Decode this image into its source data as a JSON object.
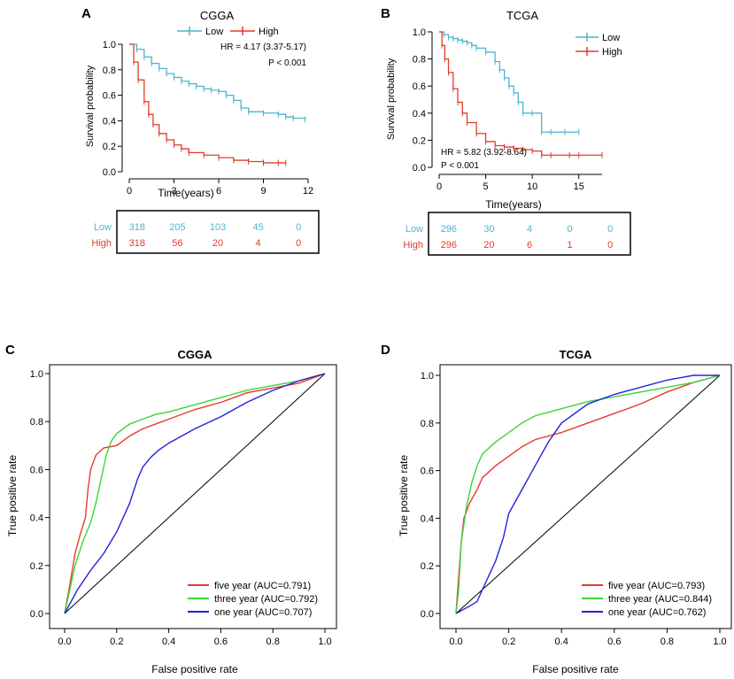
{
  "chart_data": [
    {
      "panel": "A",
      "type": "line",
      "subtype": "kaplan-meier",
      "title": "CGGA",
      "xlabel": "Time(years)",
      "ylabel": "Survival probability",
      "xlim": [
        0,
        12
      ],
      "ylim": [
        0,
        1
      ],
      "xticks": [
        "0",
        "3",
        "6",
        "9",
        "12"
      ],
      "yticks": [
        "0.0",
        "0.2",
        "0.4",
        "0.6",
        "0.8",
        "1.0"
      ],
      "legend": [
        "Low",
        "High"
      ],
      "legend_position": "top",
      "annotation": [
        "HR = 4.17 (3.37-5.17)",
        "P < 0.001"
      ],
      "colors": {
        "Low": "#4fb3cf",
        "High": "#e03c2c"
      },
      "series": [
        {
          "name": "Low",
          "x": [
            0,
            0.5,
            1,
            1.5,
            2,
            2.5,
            3,
            3.5,
            4,
            4.5,
            5,
            5.5,
            6,
            6.5,
            7,
            7.5,
            8,
            9,
            10,
            10.5,
            11,
            11.8
          ],
          "y": [
            1.0,
            0.96,
            0.9,
            0.85,
            0.81,
            0.77,
            0.74,
            0.71,
            0.69,
            0.67,
            0.65,
            0.64,
            0.63,
            0.6,
            0.56,
            0.5,
            0.47,
            0.46,
            0.45,
            0.43,
            0.42,
            0.41
          ]
        },
        {
          "name": "High",
          "x": [
            0,
            0.3,
            0.6,
            1,
            1.3,
            1.6,
            2,
            2.5,
            3,
            3.5,
            4,
            5,
            6,
            7,
            8,
            9,
            10,
            10.5
          ],
          "y": [
            1.0,
            0.86,
            0.72,
            0.55,
            0.45,
            0.37,
            0.3,
            0.25,
            0.21,
            0.18,
            0.15,
            0.13,
            0.11,
            0.09,
            0.08,
            0.07,
            0.07,
            0.07
          ]
        }
      ],
      "risk_table": {
        "times": [
          "0",
          "3",
          "6",
          "9",
          "12"
        ],
        "rows": [
          {
            "name": "Low",
            "values": [
              "318",
              "205",
              "103",
              "45",
              "0"
            ]
          },
          {
            "name": "High",
            "values": [
              "318",
              "56",
              "20",
              "4",
              "0"
            ]
          }
        ]
      }
    },
    {
      "panel": "B",
      "type": "line",
      "subtype": "kaplan-meier",
      "title": "TCGA",
      "xlabel": "Time(years)",
      "ylabel": "Survival probability",
      "xlim": [
        0,
        17.5
      ],
      "ylim": [
        0,
        1
      ],
      "xticks": [
        "0",
        "5",
        "10",
        "15"
      ],
      "yticks": [
        "0.0",
        "0.2",
        "0.4",
        "0.6",
        "0.8",
        "1.0"
      ],
      "legend": [
        "Low",
        "High"
      ],
      "legend_position": "top-right",
      "annotation": [
        "HR = 5.82 (3.92-8.64)",
        "P < 0.001"
      ],
      "colors": {
        "Low": "#4fb3cf",
        "High": "#e03c2c"
      },
      "series": [
        {
          "name": "Low",
          "x": [
            0,
            0.5,
            1,
            1.5,
            2,
            2.5,
            3,
            3.5,
            4,
            5,
            6,
            6.5,
            7,
            7.5,
            8,
            8.5,
            9,
            10,
            11,
            12,
            13.5,
            15
          ],
          "y": [
            1.0,
            0.98,
            0.96,
            0.95,
            0.94,
            0.93,
            0.92,
            0.9,
            0.88,
            0.85,
            0.78,
            0.72,
            0.66,
            0.6,
            0.55,
            0.48,
            0.4,
            0.4,
            0.26,
            0.26,
            0.26,
            0.26
          ]
        },
        {
          "name": "High",
          "x": [
            0,
            0.3,
            0.6,
            1,
            1.5,
            2,
            2.5,
            3,
            4,
            5,
            6,
            7,
            8,
            9,
            10,
            11,
            12,
            14,
            15,
            17.5
          ],
          "y": [
            1.0,
            0.9,
            0.8,
            0.7,
            0.58,
            0.48,
            0.4,
            0.33,
            0.25,
            0.19,
            0.16,
            0.15,
            0.14,
            0.13,
            0.12,
            0.09,
            0.09,
            0.09,
            0.09,
            0.09
          ]
        }
      ],
      "risk_table": {
        "times": [
          "0",
          "5",
          "10",
          "15",
          "17.5"
        ],
        "rows": [
          {
            "name": "Low",
            "values": [
              "296",
              "30",
              "4",
              "0",
              "0"
            ]
          },
          {
            "name": "High",
            "values": [
              "296",
              "20",
              "6",
              "1",
              "0"
            ]
          }
        ]
      }
    },
    {
      "panel": "C",
      "type": "line",
      "subtype": "roc",
      "title": "CGGA",
      "xlabel": "False positive rate",
      "ylabel": "True positive rate",
      "xlim": [
        0,
        1
      ],
      "ylim": [
        0,
        1
      ],
      "xticks": [
        "0.0",
        "0.2",
        "0.4",
        "0.6",
        "0.8",
        "1.0"
      ],
      "yticks": [
        "0.0",
        "0.2",
        "0.4",
        "0.6",
        "0.8",
        "1.0"
      ],
      "legend_position": "bottom-right",
      "series": [
        {
          "name": "five year (AUC=0.791)",
          "color": "#e53b2c",
          "x": [
            0,
            0.02,
            0.04,
            0.06,
            0.08,
            0.09,
            0.1,
            0.12,
            0.15,
            0.2,
            0.25,
            0.3,
            0.35,
            0.4,
            0.5,
            0.6,
            0.7,
            0.8,
            0.9,
            0.95,
            1.0
          ],
          "y": [
            0,
            0.12,
            0.25,
            0.33,
            0.4,
            0.52,
            0.6,
            0.66,
            0.69,
            0.7,
            0.74,
            0.77,
            0.79,
            0.81,
            0.85,
            0.88,
            0.92,
            0.94,
            0.96,
            0.98,
            1.0
          ]
        },
        {
          "name": "three year (AUC=0.792)",
          "color": "#3ad43a",
          "x": [
            0,
            0.02,
            0.04,
            0.07,
            0.1,
            0.12,
            0.14,
            0.16,
            0.18,
            0.2,
            0.25,
            0.3,
            0.35,
            0.4,
            0.5,
            0.6,
            0.7,
            0.8,
            0.9,
            1.0
          ],
          "y": [
            0,
            0.1,
            0.2,
            0.3,
            0.38,
            0.46,
            0.56,
            0.66,
            0.72,
            0.75,
            0.79,
            0.81,
            0.83,
            0.84,
            0.87,
            0.9,
            0.93,
            0.95,
            0.97,
            1.0
          ]
        },
        {
          "name": "one year (AUC=0.707)",
          "color": "#2323d8",
          "x": [
            0,
            0.05,
            0.1,
            0.15,
            0.2,
            0.25,
            0.28,
            0.3,
            0.33,
            0.36,
            0.4,
            0.45,
            0.5,
            0.6,
            0.7,
            0.8,
            0.9,
            1.0
          ],
          "y": [
            0,
            0.1,
            0.18,
            0.25,
            0.34,
            0.46,
            0.56,
            0.61,
            0.65,
            0.68,
            0.71,
            0.74,
            0.77,
            0.82,
            0.88,
            0.93,
            0.97,
            1.0
          ]
        }
      ]
    },
    {
      "panel": "D",
      "type": "line",
      "subtype": "roc",
      "title": "TCGA",
      "xlabel": "False positive rate",
      "ylabel": "True positive rate",
      "xlim": [
        0,
        1
      ],
      "ylim": [
        0,
        1
      ],
      "xticks": [
        "0.0",
        "0.2",
        "0.4",
        "0.6",
        "0.8",
        "1.0"
      ],
      "yticks": [
        "0.0",
        "0.2",
        "0.4",
        "0.6",
        "0.8",
        "1.0"
      ],
      "legend_position": "bottom-right",
      "series": [
        {
          "name": "five year (AUC=0.793)",
          "color": "#e53b2c",
          "x": [
            0,
            0.01,
            0.02,
            0.03,
            0.05,
            0.08,
            0.1,
            0.15,
            0.2,
            0.25,
            0.3,
            0.4,
            0.5,
            0.6,
            0.7,
            0.8,
            0.9,
            1.0
          ],
          "y": [
            0,
            0.15,
            0.3,
            0.4,
            0.46,
            0.52,
            0.57,
            0.62,
            0.66,
            0.7,
            0.73,
            0.76,
            0.8,
            0.84,
            0.88,
            0.93,
            0.97,
            1.0
          ]
        },
        {
          "name": "three year (AUC=0.844)",
          "color": "#3ad43a",
          "x": [
            0,
            0.01,
            0.02,
            0.04,
            0.06,
            0.08,
            0.1,
            0.15,
            0.2,
            0.25,
            0.3,
            0.4,
            0.5,
            0.6,
            0.7,
            0.8,
            0.9,
            1.0
          ],
          "y": [
            0,
            0.1,
            0.3,
            0.45,
            0.55,
            0.62,
            0.67,
            0.72,
            0.76,
            0.8,
            0.83,
            0.86,
            0.89,
            0.91,
            0.93,
            0.95,
            0.97,
            1.0
          ]
        },
        {
          "name": "one year (AUC=0.762)",
          "color": "#2323d8",
          "x": [
            0,
            0.05,
            0.08,
            0.1,
            0.15,
            0.18,
            0.2,
            0.25,
            0.3,
            0.35,
            0.4,
            0.5,
            0.6,
            0.7,
            0.8,
            0.9,
            1.0
          ],
          "y": [
            0,
            0.03,
            0.05,
            0.1,
            0.22,
            0.32,
            0.42,
            0.52,
            0.62,
            0.72,
            0.8,
            0.88,
            0.92,
            0.95,
            0.98,
            1.0,
            1.0
          ]
        }
      ]
    }
  ]
}
